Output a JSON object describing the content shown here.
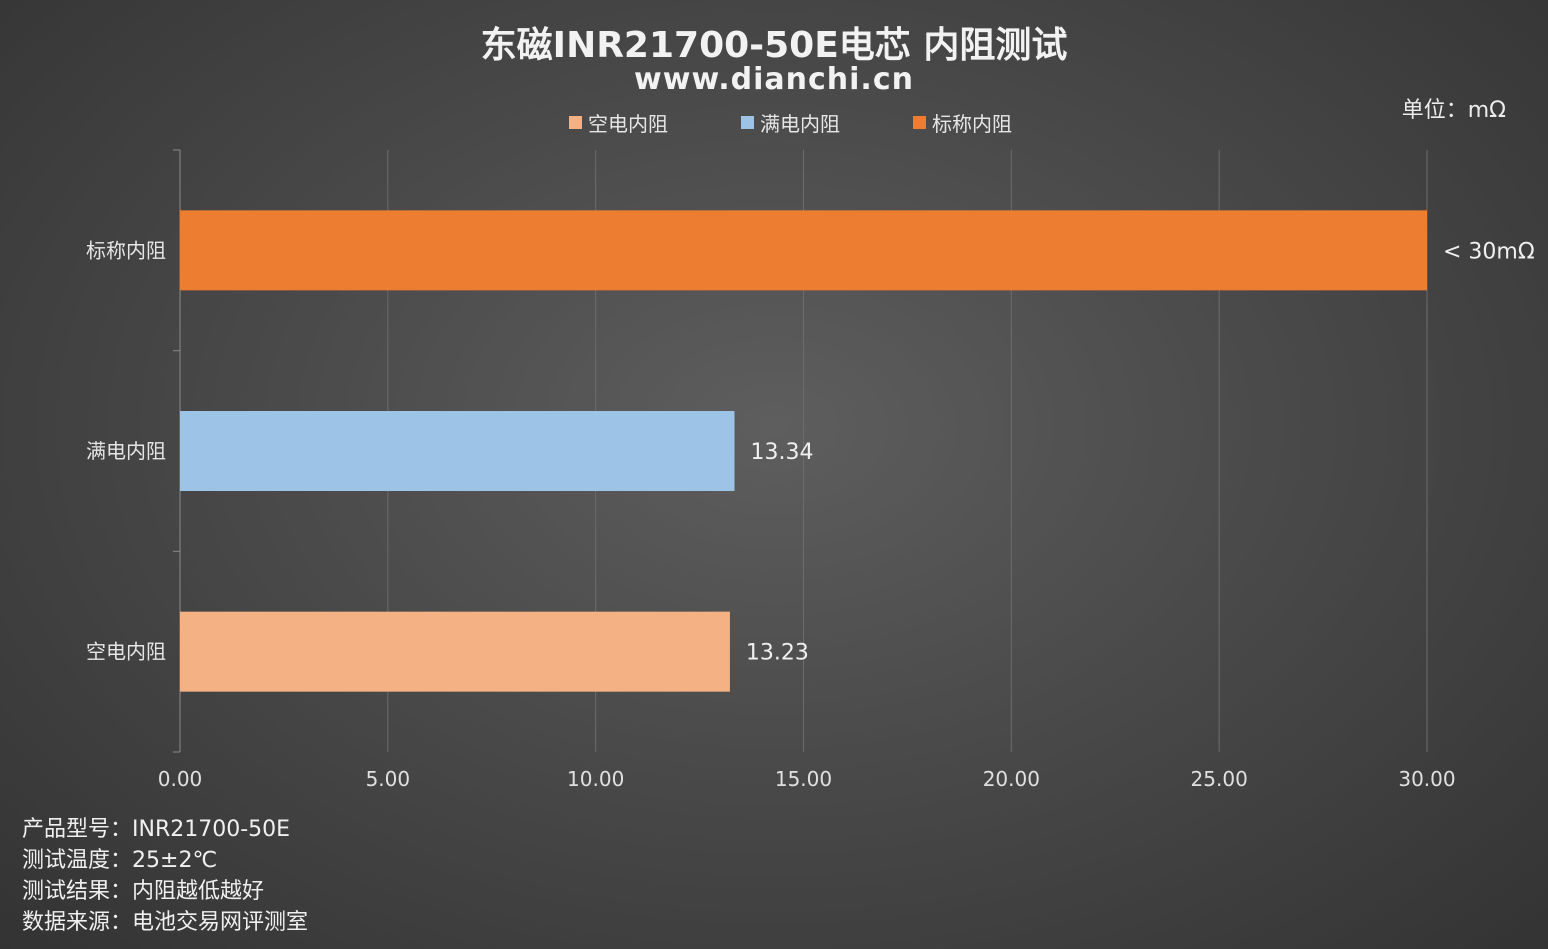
{
  "title": "东磁INR21700-50E电芯 内阻测试",
  "subtitle": "www.dianchi.cn",
  "unit_label": "单位：mΩ",
  "chart_data": {
    "type": "bar",
    "orientation": "horizontal",
    "categories": [
      "标称内阻",
      "满电内阻",
      "空电内阻"
    ],
    "values": [
      30.0,
      13.34,
      13.23
    ],
    "data_labels": [
      "< 30mΩ",
      "13.34",
      "13.23"
    ],
    "colors": [
      "#ed7d31",
      "#9dc3e6",
      "#f4b183"
    ],
    "legend": [
      "空电内阻",
      "满电内阻",
      "标称内阻"
    ],
    "legend_colors": [
      "#f4b183",
      "#9dc3e6",
      "#ed7d31"
    ],
    "legend_position": "top",
    "xlim": [
      0,
      30
    ],
    "x_ticks": [
      0,
      5,
      10,
      15,
      20,
      25,
      30
    ],
    "x_tick_labels": [
      "0.00",
      "5.00",
      "10.00",
      "15.00",
      "20.00",
      "25.00",
      "30.00"
    ],
    "grid": true
  },
  "footnotes": [
    {
      "label": "产品型号：",
      "value": "INR21700-50E"
    },
    {
      "label": "测试温度：",
      "value": "25±2℃"
    },
    {
      "label": "测试结果：",
      "value": "内阻越低越好"
    },
    {
      "label": "数据来源：",
      "value": "电池交易网评测室"
    }
  ]
}
